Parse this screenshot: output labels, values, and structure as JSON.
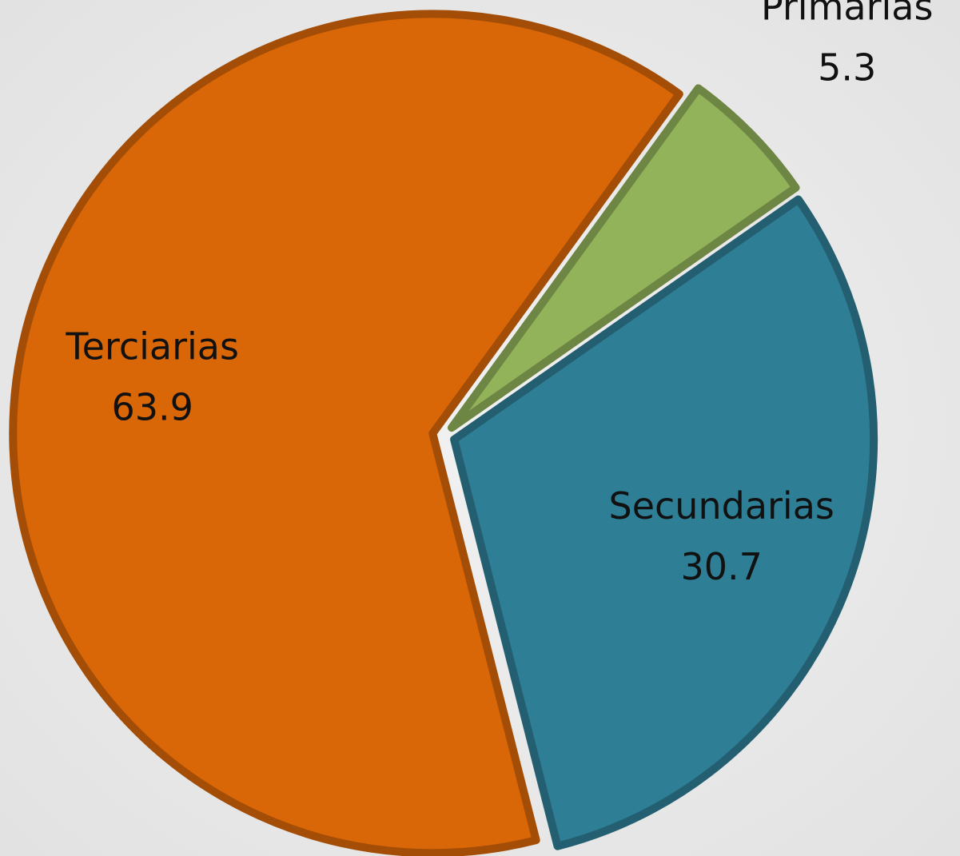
{
  "chart_data": {
    "type": "pie",
    "categories": [
      "Primarias",
      "Secundarias",
      "Terciarias"
    ],
    "values": [
      5.3,
      30.7,
      63.9
    ],
    "colors": [
      "#93b35a",
      "#2e7f96",
      "#d96708"
    ],
    "start_angle": 36
  }
}
